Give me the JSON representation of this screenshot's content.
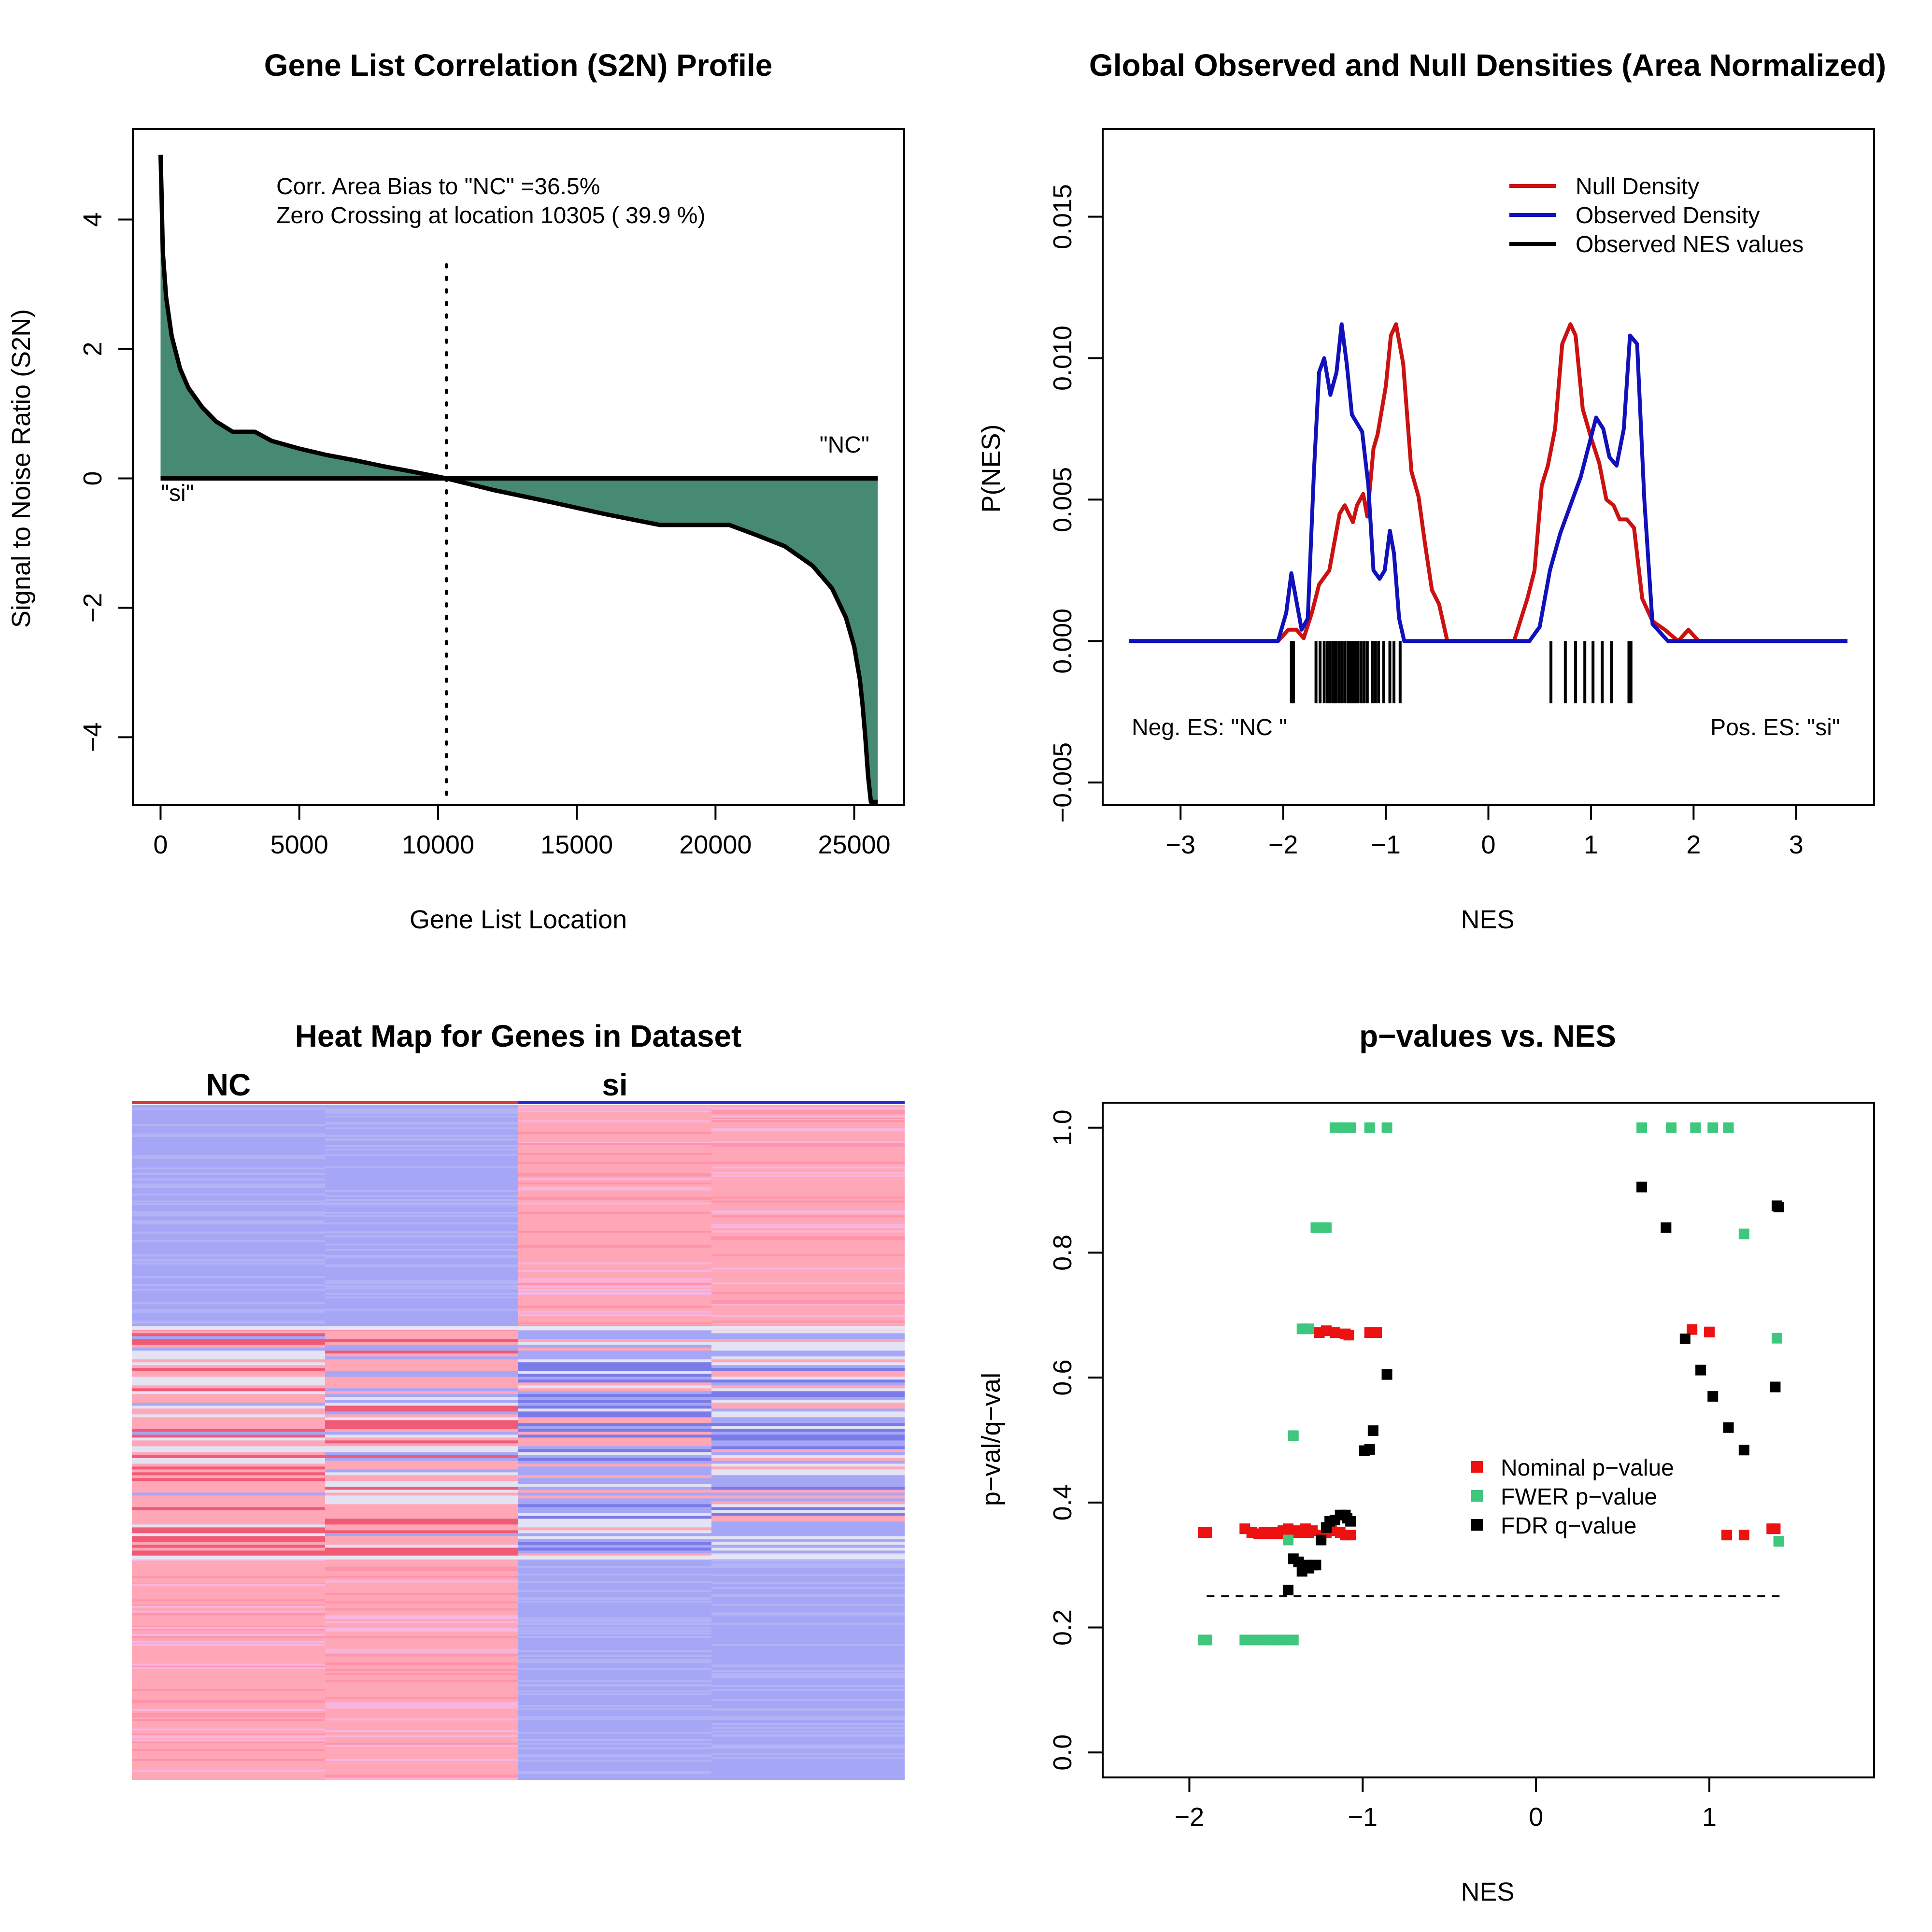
{
  "chart_data": [
    {
      "type": "area",
      "title": "Gene List Correlation (S2N) Profile",
      "xlabel": "Gene List Location",
      "ylabel": "Signal to Noise Ratio (S2N)",
      "xlim": [
        -1000,
        26800
      ],
      "ylim": [
        -5.05,
        5.4
      ],
      "xticks": [
        "0",
        "5000",
        "10000",
        "15000",
        "20000",
        "25000"
      ],
      "yticks": [
        "−4",
        "−2",
        "0",
        "2",
        "4"
      ],
      "fill_color": "#478a73",
      "annotations": [
        "Corr. Area Bias to \"NC\" =36.5%",
        "Zero Crossing at location  10305  ( 39.9  %)"
      ],
      "zero_crossing": 10305,
      "label_left": "\"si\"",
      "label_right": "\"NC\"",
      "x": [
        0,
        30,
        80,
        200,
        400,
        700,
        1000,
        1500,
        2000,
        2600,
        3400,
        4000,
        5000,
        6000,
        7000,
        8000,
        9000,
        10305,
        12000,
        14000,
        16000,
        18000,
        20500,
        21500,
        22500,
        23500,
        24200,
        24700,
        25000,
        25200,
        25300,
        25400,
        25500,
        25600,
        25850
      ],
      "y": [
        5.0,
        4.5,
        3.5,
        2.8,
        2.2,
        1.7,
        1.4,
        1.1,
        0.88,
        0.72,
        0.72,
        0.58,
        0.46,
        0.36,
        0.28,
        0.19,
        0.11,
        0.0,
        -0.18,
        -0.36,
        -0.55,
        -0.72,
        -0.72,
        -0.88,
        -1.05,
        -1.35,
        -1.7,
        -2.15,
        -2.6,
        -3.1,
        -3.5,
        -4.0,
        -4.6,
        -5.0,
        -5.0
      ]
    },
    {
      "type": "line",
      "title": "Global Observed and Null Densities (Area Normalized)",
      "xlabel": "NES",
      "ylabel": "P(NES)",
      "xlim": [
        -3.5,
        3.5
      ],
      "ylim": [
        -0.0058,
        0.0181
      ],
      "xticks": [
        "−3",
        "−2",
        "−1",
        "0",
        "1",
        "2",
        "3"
      ],
      "yticks": [
        "−0.005",
        "0.000",
        "0.005",
        "0.010",
        "0.015"
      ],
      "legend_position": "top-right",
      "legend": [
        "Null Density",
        "Observed Density",
        "Observed NES values"
      ],
      "colors": {
        "null": "#cc1111",
        "observed": "#1111bb",
        "rug": "#000000"
      },
      "series": [
        {
          "name": "Null Density",
          "x": [
            -3.5,
            -2.05,
            -1.95,
            -1.87,
            -1.8,
            -1.72,
            -1.65,
            -1.55,
            -1.45,
            -1.4,
            -1.32,
            -1.28,
            -1.22,
            -1.18,
            -1.12,
            -1.08,
            -1.0,
            -0.95,
            -0.9,
            -0.83,
            -0.75,
            -0.68,
            -0.62,
            -0.55,
            -0.48,
            -0.4,
            -0.33,
            -0.25,
            0.25,
            0.38,
            0.45,
            0.52,
            0.58,
            0.65,
            0.72,
            0.8,
            0.85,
            0.92,
            1.0,
            1.08,
            1.15,
            1.22,
            1.28,
            1.35,
            1.42,
            1.5,
            1.6,
            1.72,
            1.85,
            1.95,
            2.05,
            2.15,
            3.5
          ],
          "y": [
            0.0,
            0.0,
            0.0004,
            0.0004,
            0.0001,
            0.001,
            0.002,
            0.0025,
            0.0045,
            0.0048,
            0.0042,
            0.0048,
            0.0052,
            0.0044,
            0.0068,
            0.0073,
            0.009,
            0.0108,
            0.0112,
            0.0098,
            0.006,
            0.0051,
            0.0035,
            0.0018,
            0.0013,
            0.0,
            0.0,
            0.0,
            0.0,
            0.0015,
            0.0025,
            0.0055,
            0.0062,
            0.0075,
            0.0105,
            0.0112,
            0.0108,
            0.0082,
            0.0072,
            0.0063,
            0.005,
            0.0048,
            0.0043,
            0.0043,
            0.004,
            0.0015,
            0.0007,
            0.0004,
            0.0,
            0.0004,
            0.0,
            0.0,
            0.0
          ]
        },
        {
          "name": "Observed Density",
          "x": [
            -3.5,
            -2.05,
            -1.97,
            -1.92,
            -1.86,
            -1.82,
            -1.76,
            -1.7,
            -1.65,
            -1.6,
            -1.54,
            -1.48,
            -1.43,
            -1.38,
            -1.33,
            -1.28,
            -1.23,
            -1.17,
            -1.12,
            -1.06,
            -1.01,
            -0.96,
            -0.92,
            -0.87,
            -0.82,
            -0.75,
            -0.65,
            0.2,
            0.4,
            0.5,
            0.6,
            0.7,
            0.8,
            0.9,
            1.0,
            1.05,
            1.12,
            1.18,
            1.25,
            1.32,
            1.38,
            1.45,
            1.52,
            1.6,
            1.75,
            3.5
          ],
          "y": [
            0.0,
            0.0,
            0.001,
            0.0024,
            0.0012,
            0.0004,
            0.0008,
            0.006,
            0.0095,
            0.01,
            0.0087,
            0.0095,
            0.0112,
            0.0098,
            0.008,
            0.0077,
            0.0074,
            0.0055,
            0.0025,
            0.0022,
            0.0025,
            0.0039,
            0.0031,
            0.0008,
            0.0,
            0.0,
            0.0,
            0.0,
            0.0,
            0.0005,
            0.0025,
            0.0038,
            0.0048,
            0.0058,
            0.0072,
            0.0079,
            0.0075,
            0.0065,
            0.0062,
            0.0075,
            0.0108,
            0.0105,
            0.005,
            0.0006,
            0.0,
            0.0
          ]
        }
      ],
      "rug_nes": [
        -1.92,
        -1.9,
        -1.68,
        -1.64,
        -1.6,
        -1.57,
        -1.54,
        -1.51,
        -1.49,
        -1.46,
        -1.43,
        -1.4,
        -1.37,
        -1.35,
        -1.33,
        -1.31,
        -1.29,
        -1.27,
        -1.24,
        -1.21,
        -1.18,
        -1.13,
        -1.1,
        -1.07,
        -1.02,
        -0.96,
        -0.92,
        -0.86,
        0.61,
        0.75,
        0.85,
        0.94,
        1.02,
        1.11,
        1.2,
        1.37,
        1.39
      ],
      "annotations": [
        "Neg. ES: \"NC \"",
        "Pos. ES: \"si\""
      ]
    },
    {
      "type": "heatmap",
      "title": "Heat Map for Genes in Dataset",
      "column_groups": [
        "NC",
        "si"
      ],
      "group_colors": [
        "#d43a3a",
        "#2a2ad4"
      ],
      "palette": {
        "blue": "#a6a6f7",
        "pink": "#ffa6b7",
        "light": "#e3e3f4",
        "red": "#f05a75",
        "deep_blue": "#7a7ae8"
      },
      "block_fractions": [
        0.33,
        0.34,
        0.33
      ]
    },
    {
      "type": "scatter",
      "title": "p−values vs. NES",
      "xlabel": "NES",
      "ylabel": "p−val/q−val",
      "xlim": [
        -2.5,
        1.95
      ],
      "ylim": [
        -0.04,
        1.04
      ],
      "xticks": [
        "−2",
        "−1",
        "0",
        "1"
      ],
      "yticks": [
        "0.0",
        "0.2",
        "0.4",
        "0.6",
        "0.8",
        "1.0"
      ],
      "reference_line": 0.25,
      "legend_position": "center-right",
      "legend": [
        "Nominal p−value",
        "FWER p−value",
        "FDR q−value"
      ],
      "colors": {
        "nominal": "#ee1111",
        "fwer": "#3fc77d",
        "fdr": "#000000"
      },
      "series": [
        {
          "name": "Nominal p−value",
          "x": [
            -1.92,
            -1.9,
            -1.68,
            -1.64,
            -1.6,
            -1.57,
            -1.54,
            -1.51,
            -1.49,
            -1.46,
            -1.43,
            -1.4,
            -1.37,
            -1.35,
            -1.33,
            -1.31,
            -1.29,
            -1.24,
            -1.21,
            -1.18,
            -1.13,
            -1.1,
            -1.07,
            -1.25,
            -1.21,
            -1.16,
            -1.1,
            -1.08,
            -0.96,
            -0.92,
            0.9,
            1.0,
            1.1,
            1.2,
            1.36,
            1.38
          ],
          "y": [
            0.352,
            0.352,
            0.358,
            0.352,
            0.35,
            0.352,
            0.35,
            0.352,
            0.35,
            0.355,
            0.358,
            0.352,
            0.355,
            0.352,
            0.358,
            0.352,
            0.355,
            0.348,
            0.352,
            0.355,
            0.352,
            0.348,
            0.348,
            0.672,
            0.675,
            0.672,
            0.67,
            0.668,
            0.672,
            0.672,
            0.677,
            0.673,
            0.348,
            0.348,
            0.358,
            0.358
          ]
        },
        {
          "name": "FWER p−value",
          "x": [
            -1.92,
            -1.9,
            -1.68,
            -1.64,
            -1.6,
            -1.57,
            -1.54,
            -1.51,
            -1.49,
            -1.46,
            -1.43,
            -1.4,
            -1.35,
            -1.33,
            -1.31,
            -1.27,
            -1.24,
            -1.21,
            -1.16,
            -1.13,
            -1.1,
            -1.07,
            -0.96,
            -0.86,
            -1.4,
            -1.43,
            0.61,
            0.78,
            0.92,
            1.02,
            1.11,
            1.2,
            1.39,
            1.4
          ],
          "y": [
            0.18,
            0.18,
            0.18,
            0.18,
            0.18,
            0.18,
            0.18,
            0.18,
            0.18,
            0.18,
            0.18,
            0.18,
            0.678,
            0.678,
            0.678,
            0.84,
            0.84,
            0.84,
            1.0,
            1.0,
            1.0,
            1.0,
            1.0,
            1.0,
            0.507,
            0.34,
            1.0,
            1.0,
            1.0,
            1.0,
            1.0,
            0.83,
            0.663,
            0.338
          ]
        },
        {
          "name": "FDR q−value",
          "x": [
            -1.43,
            -1.4,
            -1.37,
            -1.35,
            -1.33,
            -1.31,
            -1.29,
            -1.27,
            -1.24,
            -1.21,
            -1.19,
            -1.16,
            -1.13,
            -1.1,
            -1.09,
            -1.07,
            -0.99,
            -0.96,
            -0.94,
            -0.86,
            0.61,
            0.75,
            0.86,
            0.95,
            1.02,
            1.11,
            1.2,
            1.38,
            1.39,
            1.4
          ],
          "y": [
            0.26,
            0.31,
            0.305,
            0.29,
            0.3,
            0.295,
            0.3,
            0.3,
            0.34,
            0.36,
            0.37,
            0.372,
            0.38,
            0.38,
            0.375,
            0.37,
            0.483,
            0.485,
            0.515,
            0.605,
            0.905,
            0.84,
            0.662,
            0.612,
            0.57,
            0.52,
            0.484,
            0.585,
            0.875,
            0.873
          ]
        }
      ]
    }
  ]
}
